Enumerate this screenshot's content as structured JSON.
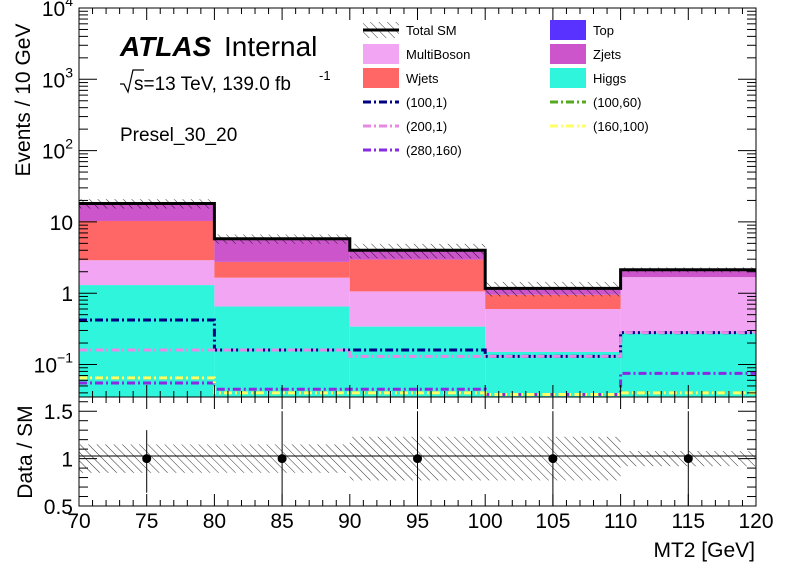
{
  "chart_data": [
    {
      "type": "area",
      "subtype": "stacked-histogram",
      "y_scale": "log",
      "xlim": [
        70,
        120
      ],
      "ylim": [
        0.035,
        10000
      ],
      "ylabel": "Events / 10 GeV",
      "bins": [
        70,
        80,
        90,
        100,
        110,
        120
      ],
      "y_ticks": [
        {
          "v": 10000,
          "b": "10",
          "e": "4"
        },
        {
          "v": 1000,
          "b": "10",
          "e": "3"
        },
        {
          "v": 100,
          "b": "10",
          "e": "2"
        },
        {
          "v": 10,
          "b": "10",
          "e": ""
        },
        {
          "v": 1,
          "b": "1",
          "e": ""
        },
        {
          "v": 0.1,
          "b": "10",
          "e": "−1"
        }
      ],
      "stack": [
        {
          "name": "Higgs",
          "color": "#2ef5dc",
          "values": [
            1.3,
            0.65,
            0.34,
            0.15,
            0.28
          ]
        },
        {
          "name": "MultiBoson",
          "color": "#f2a5f2",
          "values": [
            1.6,
            1.0,
            0.72,
            0.45,
            1.4
          ]
        },
        {
          "name": "Wjets",
          "color": "#ff6666",
          "values": [
            7.4,
            1.1,
            1.9,
            0.35,
            0.0
          ]
        },
        {
          "name": "Zjets",
          "color": "#cc55cc",
          "values": [
            7.7,
            3.0,
            1.0,
            0.2,
            0.42
          ]
        },
        {
          "name": "Top",
          "color": "#5a32ff",
          "values": [
            0.1,
            0.05,
            0.04,
            0.02,
            0.03
          ]
        }
      ],
      "total": {
        "name": "Total SM",
        "values": [
          18.1,
          5.8,
          4.0,
          1.17,
          2.13
        ]
      },
      "signals": [
        {
          "name": "(100,1)",
          "color": "#000080",
          "dash": "8,3,2,3",
          "values": [
            0.42,
            0.16,
            0.16,
            0.13,
            0.28
          ]
        },
        {
          "name": "(200,1)",
          "color": "#e68ae6",
          "dash": "8,3,2,3",
          "values": [
            0.16,
            0.16,
            0.13,
            0.13,
            0.28
          ]
        },
        {
          "name": "(280,160)",
          "color": "#8a2be2",
          "dash": "8,3,2,3",
          "values": [
            0.055,
            0.045,
            0.045,
            0.038,
            0.075
          ]
        },
        {
          "name": "(100,60)",
          "color": "#55aa22",
          "dash": "8,3,2,3",
          "values": [
            0.065,
            0.04,
            0.04,
            0.038,
            0.04
          ]
        },
        {
          "name": "(160,100)",
          "color": "#ffff66",
          "dash": "8,3,2,3",
          "values": [
            0.065,
            0.04,
            0.04,
            0.038,
            0.04
          ]
        }
      ],
      "legend_columns": [
        [
          "Total SM",
          "MultiBoson",
          "Wjets",
          "(100,1)",
          "(200,1)",
          "(280,160)"
        ],
        [
          "Top",
          "Zjets",
          "Higgs",
          "(100,60)",
          "(160,100)"
        ]
      ]
    },
    {
      "type": "scatter",
      "subtype": "ratio",
      "xlim": [
        70,
        120
      ],
      "ylim": [
        0.5,
        1.65
      ],
      "ylabel": "Data / SM",
      "xlabel": "MT2 [GeV]",
      "y_ticks": [
        "0.5",
        "1",
        "1.5"
      ],
      "x_ticks": [
        "70",
        "75",
        "80",
        "85",
        "90",
        "95",
        "100",
        "105",
        "110",
        "115",
        "120"
      ],
      "points": [
        {
          "x": 75,
          "y": 1.0,
          "err_lo": 0.36,
          "err_hi": 0.3
        },
        {
          "x": 85,
          "y": 1.0,
          "err_lo": 0.5,
          "err_hi": 0.5
        },
        {
          "x": 95,
          "y": 1.0,
          "err_lo": 0.5,
          "err_hi": 0.5
        },
        {
          "x": 105,
          "y": 1.0,
          "err_lo": 0.5,
          "err_hi": 0.5
        },
        {
          "x": 115,
          "y": 1.0,
          "err_lo": 0.5,
          "err_hi": 0.5
        }
      ],
      "uncertainty": [
        {
          "lo": 0.85,
          "hi": 1.15
        },
        {
          "lo": 0.85,
          "hi": 1.15
        },
        {
          "lo": 0.77,
          "hi": 1.23
        },
        {
          "lo": 0.77,
          "hi": 1.23
        },
        {
          "lo": 0.92,
          "hi": 1.08
        }
      ]
    }
  ],
  "annotations": {
    "atlas": "ATLAS",
    "internal": "Internal",
    "sqrts": "s=13 TeV, 139.0 fb",
    "lumi_exp": "-1",
    "region": "Presel_30_20"
  }
}
